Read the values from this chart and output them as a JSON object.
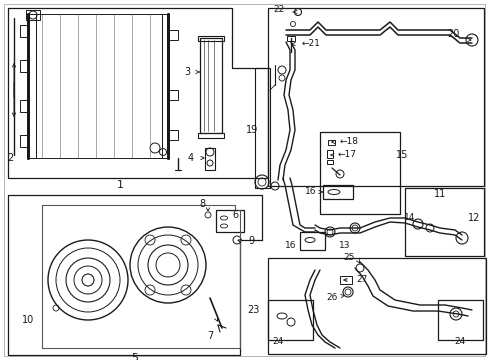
{
  "bg_color": "#ffffff",
  "lc": "#1a1a1a",
  "gray": "#888888"
}
